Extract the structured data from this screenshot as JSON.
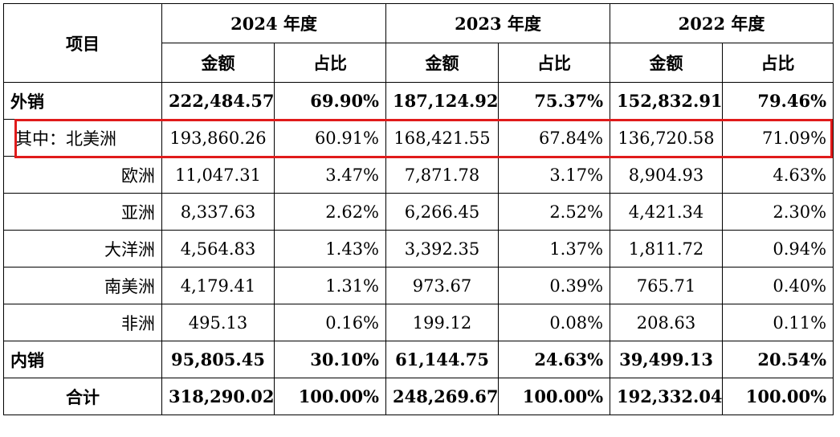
{
  "header": {
    "item_label": "项目",
    "years": [
      "2024 年度",
      "2023 年度",
      "2022 年度"
    ],
    "amount_label": "金额",
    "ratio_label": "占比"
  },
  "rows": [
    {
      "label": "外销",
      "bold": true,
      "align": "left",
      "values": [
        "222,484.57",
        "69.90%",
        "187,124.92",
        "75.37%",
        "152,832.91",
        "79.46%"
      ]
    },
    {
      "label": "其中：北美洲",
      "bold": false,
      "align": "left-indent",
      "highlight": true,
      "values": [
        "193,860.26",
        "60.91%",
        "168,421.55",
        "67.84%",
        "136,720.58",
        "71.09%"
      ]
    },
    {
      "label": "欧洲",
      "bold": false,
      "align": "right",
      "values": [
        "11,047.31",
        "3.47%",
        "7,871.78",
        "3.17%",
        "8,904.93",
        "4.63%"
      ]
    },
    {
      "label": "亚洲",
      "bold": false,
      "align": "right",
      "values": [
        "8,337.63",
        "2.62%",
        "6,266.45",
        "2.52%",
        "4,421.34",
        "2.30%"
      ]
    },
    {
      "label": "大洋洲",
      "bold": false,
      "align": "right",
      "values": [
        "4,564.83",
        "1.43%",
        "3,392.35",
        "1.37%",
        "1,811.72",
        "0.94%"
      ]
    },
    {
      "label": "南美洲",
      "bold": false,
      "align": "right",
      "values": [
        "4,179.41",
        "1.31%",
        "973.67",
        "0.39%",
        "765.71",
        "0.40%"
      ]
    },
    {
      "label": "非洲",
      "bold": false,
      "align": "right",
      "values": [
        "495.13",
        "0.16%",
        "199.12",
        "0.08%",
        "208.63",
        "0.11%"
      ]
    },
    {
      "label": "内销",
      "bold": true,
      "align": "left",
      "values": [
        "95,805.45",
        "30.10%",
        "61,144.75",
        "24.63%",
        "39,499.13",
        "20.54%"
      ]
    },
    {
      "label": "合计",
      "bold": true,
      "align": "center",
      "values": [
        "318,290.02",
        "100.00%",
        "248,269.67",
        "100.00%",
        "192,332.04",
        "100.00%"
      ]
    }
  ],
  "highlight_color": "#e01b1b"
}
